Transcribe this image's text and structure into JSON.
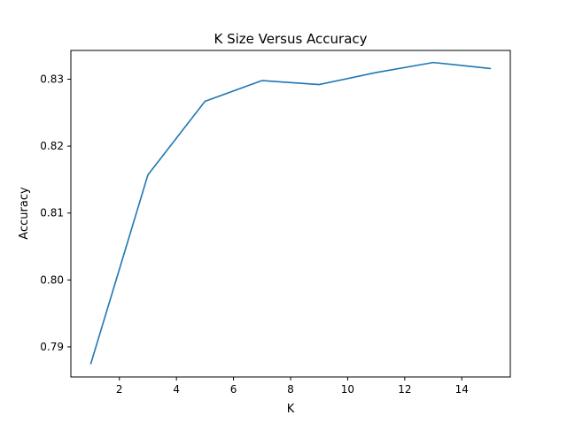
{
  "chart_data": {
    "type": "line",
    "title": "K Size Versus Accuracy",
    "xlabel": "K",
    "ylabel": "Accuracy",
    "xlim": [
      0.3,
      15.7
    ],
    "ylim": [
      0.7855,
      0.8343
    ],
    "xticks": [
      2,
      4,
      6,
      8,
      10,
      12,
      14
    ],
    "xtick_labels": [
      "2",
      "4",
      "6",
      "8",
      "10",
      "12",
      "14"
    ],
    "yticks": [
      0.79,
      0.8,
      0.81,
      0.82,
      0.83
    ],
    "ytick_labels": [
      "0.79",
      "0.80",
      "0.81",
      "0.82",
      "0.83"
    ],
    "grid": false,
    "series": [
      {
        "color": "#1f77b4",
        "x": [
          1,
          3,
          5,
          7,
          9,
          11,
          13,
          15
        ],
        "y": [
          0.7875,
          0.8157,
          0.8267,
          0.8298,
          0.8292,
          0.831,
          0.8325,
          0.8316
        ]
      }
    ]
  }
}
